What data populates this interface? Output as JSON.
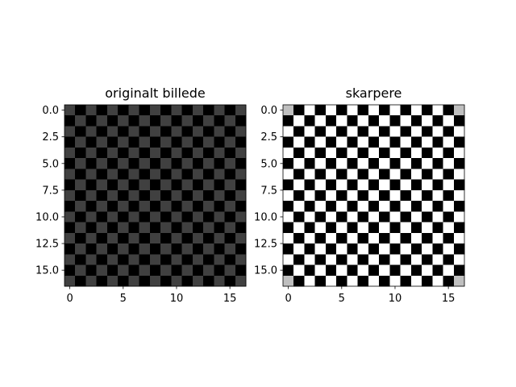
{
  "chart_data": [
    {
      "type": "heatmap",
      "title": "originalt billede",
      "xlabel": "",
      "ylabel": "",
      "rows": 17,
      "cols": 17,
      "pattern": "checkerboard",
      "cell_values": {
        "even": 0.25,
        "odd": 0.0
      },
      "corner_values": null,
      "colormap": "gray",
      "color_range": [
        0,
        1
      ],
      "xlim": [
        -0.5,
        16.5
      ],
      "ylim": [
        16.5,
        -0.5
      ],
      "xticks": [
        0,
        5,
        10,
        15
      ],
      "xtick_labels": [
        "0",
        "5",
        "10",
        "15"
      ],
      "yticks": [
        0.0,
        2.5,
        5.0,
        7.5,
        10.0,
        12.5,
        15.0
      ],
      "ytick_labels": [
        "0.0",
        "2.5",
        "5.0",
        "7.5",
        "10.0",
        "12.5",
        "15.0"
      ],
      "grid": false
    },
    {
      "type": "heatmap",
      "title": "skarpere",
      "xlabel": "",
      "ylabel": "",
      "rows": 17,
      "cols": 17,
      "pattern": "checkerboard",
      "cell_values": {
        "even": 1.0,
        "odd": 0.0
      },
      "corner_values": 0.75,
      "colormap": "gray",
      "color_range": [
        0,
        1
      ],
      "xlim": [
        -0.5,
        16.5
      ],
      "ylim": [
        16.5,
        -0.5
      ],
      "xticks": [
        0,
        5,
        10,
        15
      ],
      "xtick_labels": [
        "0",
        "5",
        "10",
        "15"
      ],
      "yticks": [
        0.0,
        2.5,
        5.0,
        7.5,
        10.0,
        12.5,
        15.0
      ],
      "ytick_labels": [
        "0.0",
        "2.5",
        "5.0",
        "7.5",
        "10.0",
        "12.5",
        "15.0"
      ],
      "grid": false
    }
  ]
}
